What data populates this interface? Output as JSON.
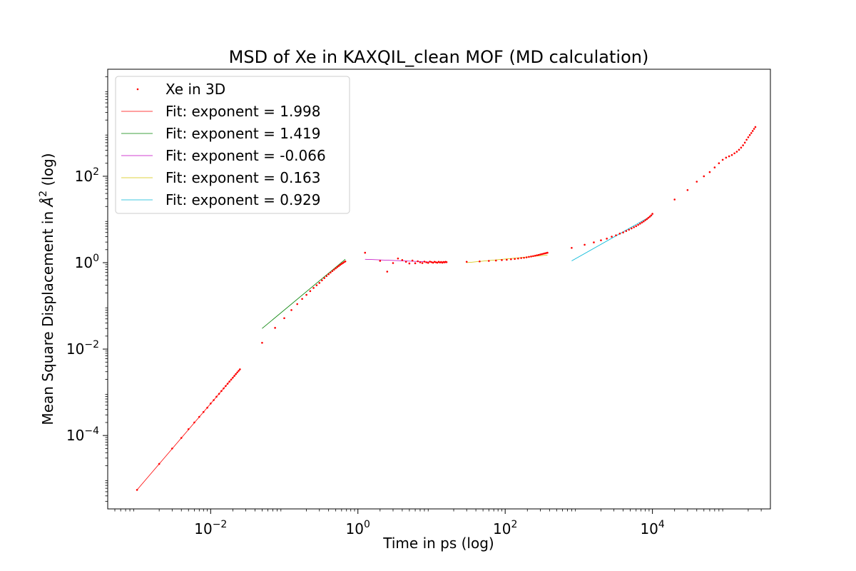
{
  "chart_data": {
    "type": "scatter",
    "title": "MSD of Xe in KAXQIL_clean MOF (MD calculation)",
    "xlabel": "Time in ps (log)",
    "ylabel_prefix": "Mean Square Displacement in ",
    "ylabel_unit": "Å",
    "ylabel_sup": "2",
    "ylabel_suffix": " (log)",
    "xscale": "log",
    "yscale": "log",
    "xlim": [
      0.0004,
      400000
    ],
    "ylim": [
      2e-06,
      30000
    ],
    "grid": false,
    "legend_position": "upper left",
    "x_ticks": [
      {
        "value": 0.01,
        "base": "10",
        "exp": "−2"
      },
      {
        "value": 1,
        "base": "10",
        "exp": "0"
      },
      {
        "value": 100,
        "base": "10",
        "exp": "2"
      },
      {
        "value": 10000,
        "base": "10",
        "exp": "4"
      }
    ],
    "y_ticks": [
      {
        "value": 0.0001,
        "base": "10",
        "exp": "−4"
      },
      {
        "value": 0.01,
        "base": "10",
        "exp": "−2"
      },
      {
        "value": 1,
        "base": "10",
        "exp": "0"
      },
      {
        "value": 100,
        "base": "10",
        "exp": "2"
      }
    ],
    "scatter_series": {
      "name": "Xe in 3D",
      "color": "#ff0000",
      "points": [
        [
          0.001,
          5.5e-06
        ],
        [
          0.002,
          2.2e-05
        ],
        [
          0.003,
          5e-05
        ],
        [
          0.004,
          8.8e-05
        ],
        [
          0.005,
          0.00014
        ],
        [
          0.006,
          0.0002
        ],
        [
          0.007,
          0.00027
        ],
        [
          0.008,
          0.00035
        ],
        [
          0.009,
          0.00044
        ],
        [
          0.01,
          0.00055
        ],
        [
          0.011,
          0.00066
        ],
        [
          0.012,
          0.00079
        ],
        [
          0.013,
          0.00092
        ],
        [
          0.014,
          0.00107
        ],
        [
          0.015,
          0.00123
        ],
        [
          0.016,
          0.0014
        ],
        [
          0.017,
          0.00158
        ],
        [
          0.018,
          0.00177
        ],
        [
          0.019,
          0.00197
        ],
        [
          0.02,
          0.00218
        ],
        [
          0.021,
          0.0024
        ],
        [
          0.022,
          0.00264
        ],
        [
          0.023,
          0.00288
        ],
        [
          0.024,
          0.00314
        ],
        [
          0.025,
          0.0034
        ],
        [
          0.05,
          0.014
        ],
        [
          0.075,
          0.031
        ],
        [
          0.1,
          0.052
        ],
        [
          0.125,
          0.08
        ],
        [
          0.15,
          0.11
        ],
        [
          0.175,
          0.145
        ],
        [
          0.2,
          0.18
        ],
        [
          0.225,
          0.22
        ],
        [
          0.25,
          0.26
        ],
        [
          0.275,
          0.3
        ],
        [
          0.3,
          0.34
        ],
        [
          0.325,
          0.39
        ],
        [
          0.35,
          0.44
        ],
        [
          0.375,
          0.49
        ],
        [
          0.4,
          0.54
        ],
        [
          0.425,
          0.59
        ],
        [
          0.45,
          0.64
        ],
        [
          0.475,
          0.69
        ],
        [
          0.5,
          0.74
        ],
        [
          0.525,
          0.79
        ],
        [
          0.55,
          0.84
        ],
        [
          0.575,
          0.89
        ],
        [
          0.6,
          0.94
        ],
        [
          0.625,
          0.98
        ],
        [
          0.65,
          1.03
        ],
        [
          0.675,
          1.07
        ],
        [
          1.25,
          1.7
        ],
        [
          2.0,
          1.1
        ],
        [
          2.5,
          0.62
        ],
        [
          3.0,
          0.98
        ],
        [
          3.5,
          1.25
        ],
        [
          4.0,
          1.15
        ],
        [
          4.5,
          1.05
        ],
        [
          5.0,
          0.96
        ],
        [
          5.5,
          1.12
        ],
        [
          6.0,
          0.97
        ],
        [
          6.5,
          1.08
        ],
        [
          7.0,
          1.02
        ],
        [
          7.5,
          0.98
        ],
        [
          8.0,
          1.06
        ],
        [
          8.5,
          1.02
        ],
        [
          9.0,
          0.99
        ],
        [
          9.5,
          1.06
        ],
        [
          10.0,
          1.03
        ],
        [
          10.5,
          1.0
        ],
        [
          11.0,
          1.05
        ],
        [
          11.5,
          1.02
        ],
        [
          12.0,
          1.0
        ],
        [
          12.5,
          1.05
        ],
        [
          13.0,
          1.01
        ],
        [
          13.5,
          1.04
        ],
        [
          14.0,
          1.0
        ],
        [
          14.5,
          1.04
        ],
        [
          15.0,
          1.02
        ],
        [
          15.5,
          1.05
        ],
        [
          16.0,
          1.03
        ],
        [
          30,
          1.05
        ],
        [
          45,
          1.07
        ],
        [
          60,
          1.1
        ],
        [
          75,
          1.12
        ],
        [
          90,
          1.15
        ],
        [
          105,
          1.17
        ],
        [
          120,
          1.2
        ],
        [
          135,
          1.22
        ],
        [
          150,
          1.25
        ],
        [
          165,
          1.28
        ],
        [
          180,
          1.3
        ],
        [
          195,
          1.33
        ],
        [
          210,
          1.36
        ],
        [
          225,
          1.39
        ],
        [
          240,
          1.42
        ],
        [
          255,
          1.45
        ],
        [
          270,
          1.48
        ],
        [
          285,
          1.51
        ],
        [
          300,
          1.55
        ],
        [
          315,
          1.58
        ],
        [
          330,
          1.61
        ],
        [
          345,
          1.64
        ],
        [
          360,
          1.67
        ],
        [
          375,
          1.7
        ],
        [
          800,
          2.2
        ],
        [
          1200,
          2.6
        ],
        [
          1600,
          2.95
        ],
        [
          2000,
          3.3
        ],
        [
          2400,
          3.6
        ],
        [
          2800,
          4.0
        ],
        [
          3200,
          4.3
        ],
        [
          3600,
          4.7
        ],
        [
          4000,
          5.0
        ],
        [
          4400,
          5.4
        ],
        [
          4800,
          5.8
        ],
        [
          5200,
          6.2
        ],
        [
          5600,
          6.6
        ],
        [
          6000,
          7.0
        ],
        [
          6400,
          7.5
        ],
        [
          6800,
          8.0
        ],
        [
          7200,
          8.5
        ],
        [
          7600,
          9.0
        ],
        [
          8000,
          9.6
        ],
        [
          8400,
          10.2
        ],
        [
          8800,
          10.9
        ],
        [
          9200,
          11.6
        ],
        [
          9600,
          12.4
        ],
        [
          10000,
          13.5
        ],
        [
          20000,
          29
        ],
        [
          30000,
          48
        ],
        [
          40000,
          75
        ],
        [
          50000,
          100
        ],
        [
          60000,
          125
        ],
        [
          70000,
          160
        ],
        [
          80000,
          200
        ],
        [
          90000,
          240
        ],
        [
          100000,
          270
        ],
        [
          110000,
          290
        ],
        [
          120000,
          310
        ],
        [
          130000,
          340
        ],
        [
          140000,
          370
        ],
        [
          150000,
          410
        ],
        [
          160000,
          460
        ],
        [
          170000,
          520
        ],
        [
          180000,
          600
        ],
        [
          190000,
          700
        ],
        [
          200000,
          800
        ],
        [
          210000,
          900
        ],
        [
          220000,
          1000
        ],
        [
          230000,
          1120
        ],
        [
          240000,
          1250
        ],
        [
          250000,
          1380
        ]
      ]
    },
    "fit_series": [
      {
        "name": "Fit: exponent = 1.998",
        "color": "#ff0000",
        "x": [
          0.001,
          0.025
        ],
        "y": [
          5.5e-06,
          0.0034
        ]
      },
      {
        "name": "Fit: exponent = 1.419",
        "color": "#008000",
        "x": [
          0.05,
          0.675
        ],
        "y": [
          0.03,
          1.2
        ]
      },
      {
        "name": "Fit: exponent = -0.066",
        "color": "#c000c0",
        "x": [
          1.25,
          16.0
        ],
        "y": [
          1.2,
          1.0
        ]
      },
      {
        "name": "Fit: exponent = 0.163",
        "color": "#d4c400",
        "x": [
          30,
          375
        ],
        "y": [
          1.0,
          1.5
        ]
      },
      {
        "name": "Fit: exponent = 0.929",
        "color": "#00b8d8",
        "x": [
          800,
          10000
        ],
        "y": [
          1.1,
          12.5
        ]
      }
    ]
  }
}
